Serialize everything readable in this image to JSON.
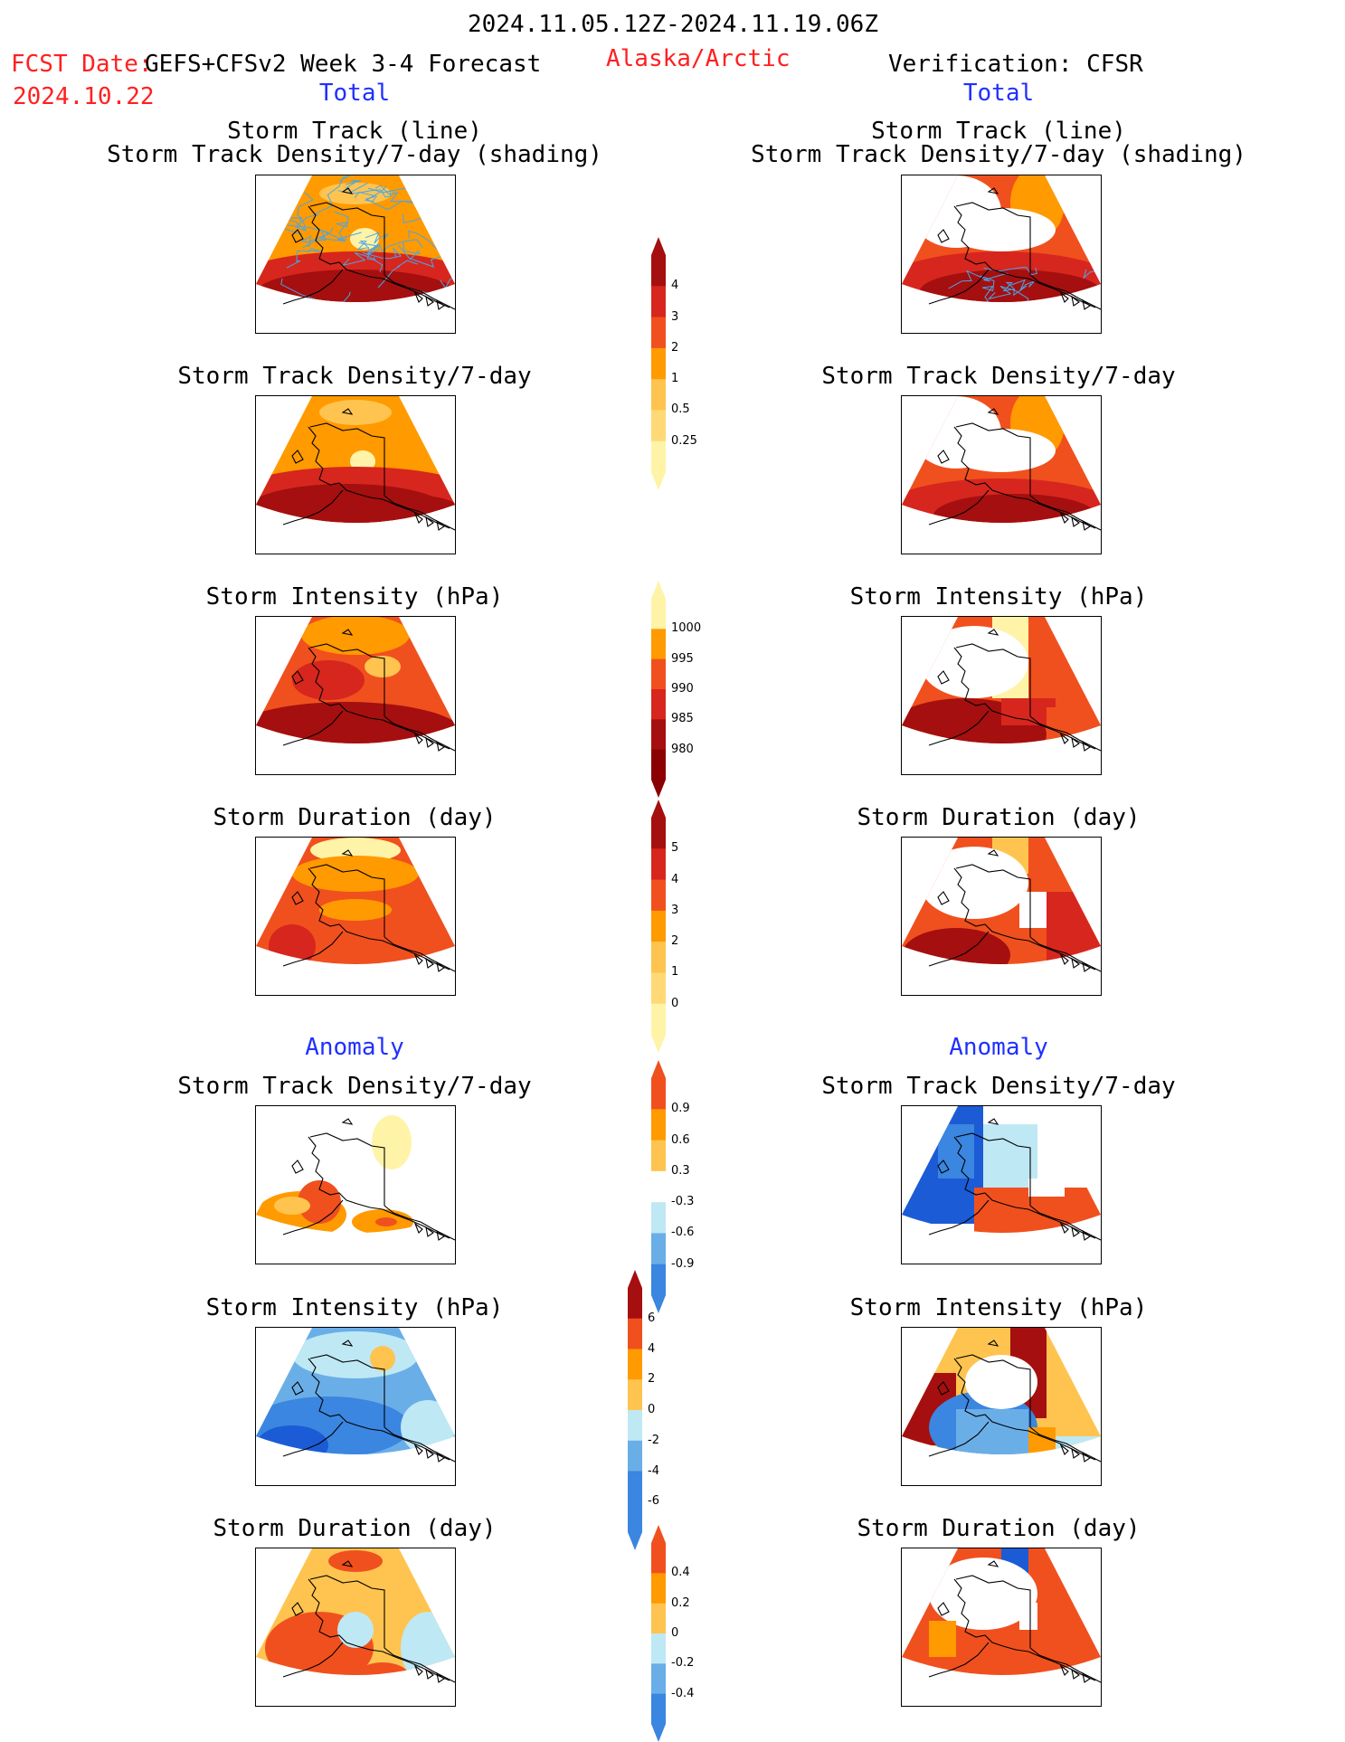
{
  "header": {
    "date_range": "2024.11.05.12Z-2024.11.19.06Z",
    "fcst_label": "FCST Date:",
    "fcst_product": "GEFS+CFSv2 Week 3-4 Forecast",
    "fcst_date": "2024.10.22",
    "region": "Alaska/Arctic",
    "verification": "Verification: CFSR"
  },
  "columns": {
    "left_total": "Total",
    "right_total": "Total",
    "left_anomaly": "Anomaly",
    "right_anomaly": "Anomaly"
  },
  "titles": {
    "track_line": "Storm Track (line)",
    "track_density_shading": "Storm Track Density/7-day (shading)",
    "track_density": "Storm Track Density/7-day",
    "intensity": "Storm Intensity (hPa)",
    "duration": "Storm Duration (day)"
  },
  "colorbars": {
    "density": [
      "4",
      "3",
      "2",
      "1",
      "0.5",
      "0.25"
    ],
    "intensity": [
      "1000",
      "995",
      "990",
      "985",
      "980"
    ],
    "duration": [
      "5",
      "4",
      "3",
      "2",
      "1",
      "0"
    ],
    "density_anom": [
      "0.9",
      "0.6",
      "0.3",
      "-0.3",
      "-0.6",
      "-0.9"
    ],
    "intensity_anom": [
      "6",
      "4",
      "2",
      "0",
      "-2",
      "-4",
      "-6"
    ],
    "duration_anom": [
      "0.4",
      "0.2",
      "0",
      "-0.2",
      "-0.4"
    ]
  },
  "colors": {
    "darkred": "#a50f0f",
    "red": "#d7261e",
    "orangered": "#f0501e",
    "orange": "#ff9a00",
    "lightorange": "#fec44f",
    "paleyellow": "#fff3a8",
    "lightblue": "#bfe8f5",
    "midblue": "#6aaee8",
    "blue": "#3a86e0",
    "darkblue": "#1c5bd6",
    "track": "#4aa6e8"
  }
}
